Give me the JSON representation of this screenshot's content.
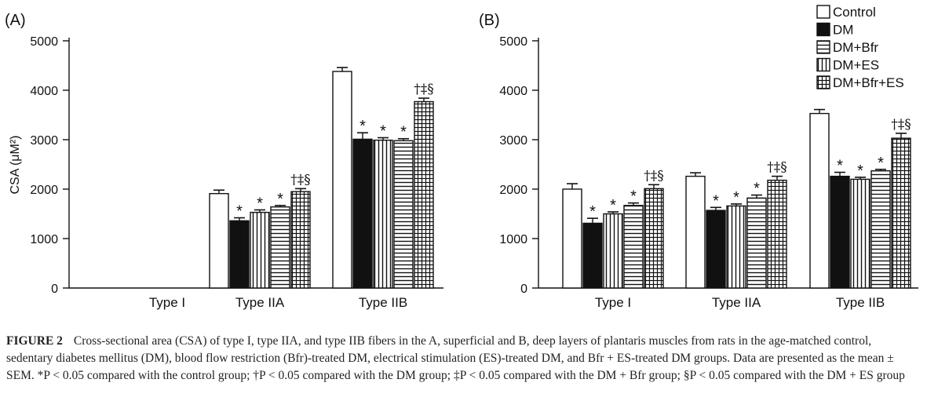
{
  "chart_data": [
    {
      "type": "bar",
      "panel_label": "(A)",
      "ylabel": "CSA (μM²)",
      "ylim": [
        0,
        5000
      ],
      "yticks": [
        "0",
        "1000",
        "2000",
        "3000",
        "4000",
        "5000"
      ],
      "categories": [
        "Type I",
        "Type IIA",
        "Type IIB"
      ],
      "series": [
        {
          "name": "Control",
          "values": [
            null,
            1910,
            4380
          ],
          "errors": [
            null,
            70,
            80
          ],
          "marks": [
            "",
            "",
            ""
          ]
        },
        {
          "name": "DM",
          "values": [
            null,
            1360,
            3010
          ],
          "errors": [
            null,
            60,
            130
          ],
          "marks": [
            "",
            "*",
            "*"
          ]
        },
        {
          "name": "DM+ES",
          "values": [
            null,
            1530,
            2990
          ],
          "errors": [
            null,
            50,
            50
          ],
          "marks": [
            "",
            "*",
            "*"
          ]
        },
        {
          "name": "DM+Bfr",
          "values": [
            null,
            1640,
            2980
          ],
          "errors": [
            null,
            30,
            40
          ],
          "marks": [
            "",
            "*",
            "*"
          ]
        },
        {
          "name": "DM+Bfr+ES",
          "values": [
            null,
            1950,
            3770
          ],
          "errors": [
            null,
            60,
            70
          ],
          "marks": [
            "",
            "†‡§",
            "†‡§"
          ]
        }
      ],
      "legend": null
    },
    {
      "type": "bar",
      "panel_label": "(B)",
      "ylabel": "",
      "ylim": [
        0,
        5000
      ],
      "yticks": [
        "0",
        "1000",
        "2000",
        "3000",
        "4000",
        "5000"
      ],
      "categories": [
        "Type I",
        "Type IIA",
        "Type IIB"
      ],
      "series": [
        {
          "name": "Control",
          "values": [
            2000,
            2260,
            3530
          ],
          "errors": [
            110,
            70,
            80
          ],
          "marks": [
            "",
            "",
            ""
          ]
        },
        {
          "name": "DM",
          "values": [
            1310,
            1570,
            2260
          ],
          "errors": [
            100,
            60,
            80
          ],
          "marks": [
            "*",
            "*",
            "*"
          ]
        },
        {
          "name": "DM+ES",
          "values": [
            1500,
            1660,
            2200
          ],
          "errors": [
            40,
            40,
            40
          ],
          "marks": [
            "*",
            "*",
            "*"
          ]
        },
        {
          "name": "DM+Bfr",
          "values": [
            1670,
            1820,
            2370
          ],
          "errors": [
            50,
            60,
            30
          ],
          "marks": [
            "*",
            "*",
            "*"
          ]
        },
        {
          "name": "DM+Bfr+ES",
          "values": [
            2010,
            2180,
            3030
          ],
          "errors": [
            80,
            80,
            100
          ],
          "marks": [
            "†‡§",
            "†‡§",
            "†‡§"
          ]
        }
      ],
      "legend": {
        "position": "top-right",
        "entries": [
          "Control",
          "DM",
          "DM+Bfr",
          "DM+ES",
          "DM+Bfr+ES"
        ]
      }
    }
  ],
  "caption": {
    "label": "FIGURE 2",
    "text": "Cross-sectional area (CSA) of type I, type IIA, and type IIB fibers in the A, superficial and B, deep layers of plantaris muscles from rats in the age-matched control, sedentary diabetes mellitus (DM), blood flow restriction (Bfr)-treated DM, electrical stimulation (ES)-treated DM, and Bfr + ES-treated DM groups. Data are presented as the mean ± SEM. *P < 0.05 compared with the control group; †P < 0.05 compared with the DM group; ‡P < 0.05 compared with the DM + Bfr group; §P < 0.05 compared with the DM + ES group"
  },
  "colors": {
    "ink": "#111111",
    "background": "#ffffff"
  }
}
